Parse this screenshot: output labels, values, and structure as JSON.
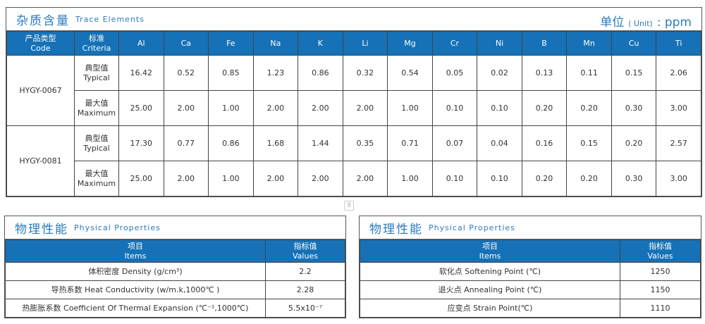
{
  "trace": {
    "title_cn": "杂质含量",
    "title_en": "Trace Elements",
    "unit_cn": "单位",
    "unit_en": "( Unit)",
    "unit_sep": ":",
    "unit_val": "ppm",
    "headers": {
      "code_cn": "产品类型",
      "code_en": "Code",
      "crit_cn": "标准",
      "crit_en": "Criteria"
    },
    "elements": [
      "Al",
      "Ca",
      "Fe",
      "Na",
      "K",
      "Li",
      "Mg",
      "Cr",
      "Ni",
      "B",
      "Mn",
      "Cu",
      "Ti"
    ],
    "products": [
      {
        "code": "HYGY-0067",
        "rows": [
          {
            "cn": "典型值",
            "en": "Typical",
            "values": [
              "16.42",
              "0.52",
              "0.85",
              "1.23",
              "0.86",
              "0.32",
              "0.54",
              "0.05",
              "0.02",
              "0.13",
              "0.11",
              "0.15",
              "2.06"
            ]
          },
          {
            "cn": "最大值",
            "en": "Maximum",
            "values": [
              "25.00",
              "2.00",
              "1.00",
              "2.00",
              "2.00",
              "2.00",
              "1.00",
              "0.10",
              "0.10",
              "0.20",
              "0.20",
              "0.30",
              "3.00"
            ]
          }
        ]
      },
      {
        "code": "HYGY-0081",
        "rows": [
          {
            "cn": "典型值",
            "en": "Typical",
            "values": [
              "17.30",
              "0.77",
              "0.86",
              "1.68",
              "1.44",
              "0.35",
              "0.71",
              "0.07",
              "0.04",
              "0.16",
              "0.15",
              "0.20",
              "2.57"
            ]
          },
          {
            "cn": "最大值",
            "en": "Maximum",
            "values": [
              "25.00",
              "2.00",
              "1.00",
              "2.00",
              "2.00",
              "2.00",
              "1.00",
              "0.10",
              "0.10",
              "0.20",
              "0.20",
              "0.30",
              "3.00"
            ]
          }
        ]
      }
    ]
  },
  "physical": [
    {
      "title_cn": "物理性能",
      "title_en": "Physical  Properties",
      "items_cn": "项目",
      "items_en": "Items",
      "values_cn": "指标值",
      "values_en": "Values",
      "rows": [
        {
          "item": "体积密度 Density (g/cm³)",
          "value": "2.2"
        },
        {
          "item": "导热系数 Heat Conductivity (w/m.k,1000℃ )",
          "value": "2.28"
        },
        {
          "item": "热膨胀系数 Coefficient Of Thermal Expansion (℃⁻¹,1000℃)",
          "value": "5.5x10⁻⁷"
        }
      ]
    },
    {
      "title_cn": "物理性能",
      "title_en": "Physical  Properties",
      "items_cn": "项目",
      "items_en": "Items",
      "values_cn": "指标值",
      "values_en": "Values",
      "rows": [
        {
          "item": "软化点 Softening Point (℃)",
          "value": "1250"
        },
        {
          "item": "退火点 Annealing Point (℃)",
          "value": "1150"
        },
        {
          "item": "应变点 Strain Point(℃)",
          "value": "1110"
        }
      ]
    }
  ],
  "colors": {
    "header_bg": "#1671b6",
    "title": "#2a7cc2"
  }
}
